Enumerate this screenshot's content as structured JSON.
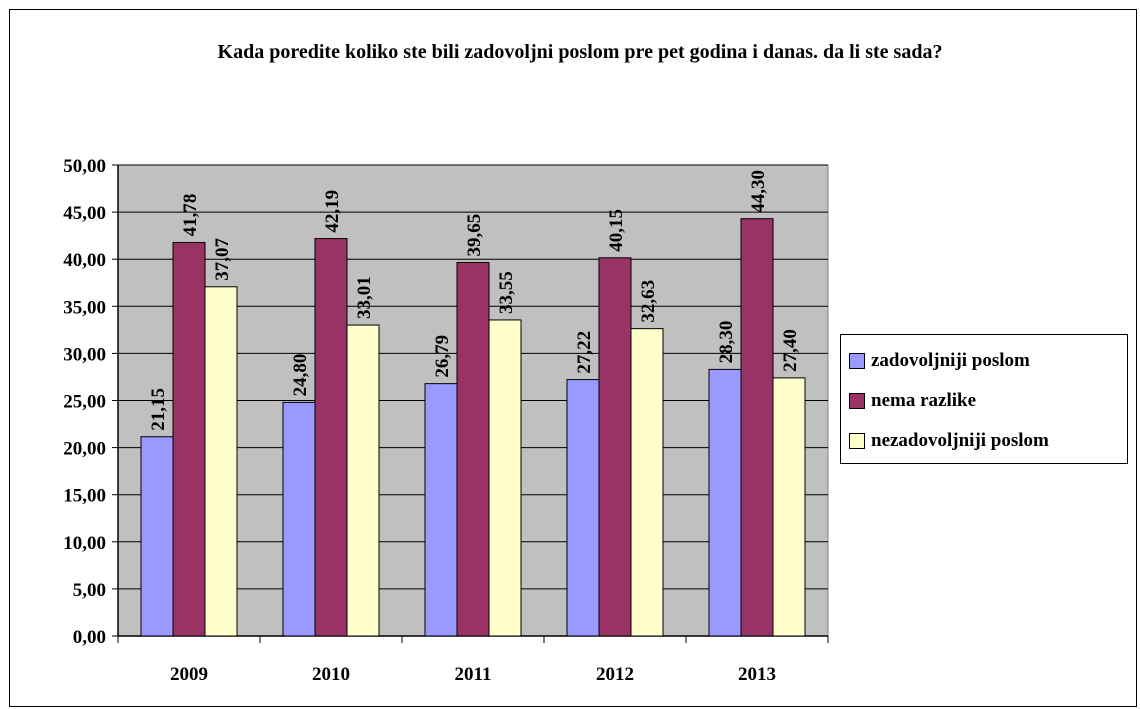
{
  "chart_data": {
    "type": "bar",
    "title": "Kada poredite koliko ste bili zadovoljni poslom pre pet godina i danas. da li ste sada?",
    "categories": [
      "2009",
      "2010",
      "2011",
      "2012",
      "2013"
    ],
    "series": [
      {
        "name": "zadovoljniji poslom",
        "color": "#9999ff",
        "values": [
          21.15,
          24.8,
          26.79,
          27.22,
          28.3
        ],
        "labels": [
          "21,15",
          "24,80",
          "26,79",
          "27,22",
          "28,30"
        ]
      },
      {
        "name": "nema razlike",
        "color": "#993366",
        "values": [
          41.78,
          42.19,
          39.65,
          40.15,
          44.3
        ],
        "labels": [
          "41,78",
          "42,19",
          "39,65",
          "40,15",
          "44,30"
        ]
      },
      {
        "name": "nezadovoljniji poslom",
        "color": "#ffffcc",
        "values": [
          37.07,
          33.01,
          33.55,
          32.63,
          27.4
        ],
        "labels": [
          "37,07",
          "33,01",
          "33,55",
          "32,63",
          "27,40"
        ]
      }
    ],
    "ylim": [
      0,
      50
    ],
    "yticks": [
      "0,00",
      "5,00",
      "10,00",
      "15,00",
      "20,00",
      "25,00",
      "30,00",
      "35,00",
      "40,00",
      "45,00",
      "50,00"
    ],
    "plot_background": "#c0c0c0",
    "grid": true,
    "legend_position": "right"
  }
}
